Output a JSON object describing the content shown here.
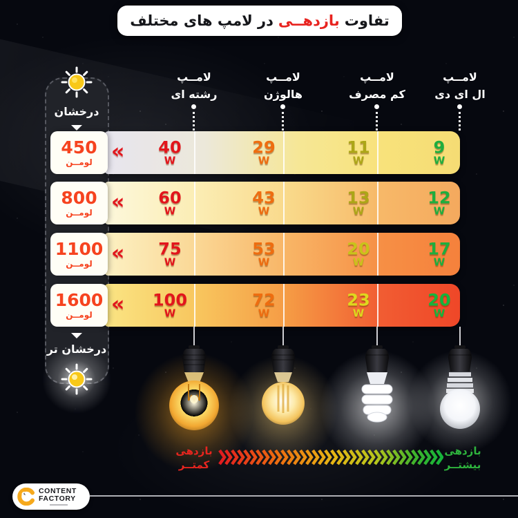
{
  "title": {
    "part1": "تفاوت",
    "highlight": "بازدهــی",
    "part2": "در لامپ های مختلف"
  },
  "sidebar": {
    "top_label": "درخشان",
    "bottom_label": "درخشان تر"
  },
  "columns": [
    {
      "line1": "لامــپ",
      "line2": "رشته ای"
    },
    {
      "line1": "لامــپ",
      "line2": "هالوژن"
    },
    {
      "line1": "لامــپ",
      "line2": "کم مصرف"
    },
    {
      "line1": "لامــپ",
      "line2": "ال ای دی"
    }
  ],
  "rows": [
    {
      "lumen": "450",
      "unit": "لومــن",
      "values": [
        "40",
        "29",
        "11",
        "9"
      ]
    },
    {
      "lumen": "800",
      "unit": "لومــن",
      "values": [
        "60",
        "43",
        "13",
        "12"
      ]
    },
    {
      "lumen": "1100",
      "unit": "لومــن",
      "values": [
        "75",
        "53",
        "20",
        "17"
      ]
    },
    {
      "lumen": "1600",
      "unit": "لومــن",
      "values": [
        "100",
        "72",
        "23",
        "20"
      ]
    }
  ],
  "watt_unit": "W",
  "icons": {
    "row_chevron": "«",
    "sun": "sun-icon",
    "arrow_down": "triangle-down"
  },
  "legend": {
    "low": {
      "line1": "بازدهی",
      "line2": "کمتــر"
    },
    "high": {
      "line1": "بازدهی",
      "line2": "بیشتــر"
    }
  },
  "logo": {
    "line1": "CONTENT",
    "line2": "FACTORY"
  },
  "palette": {
    "background": "#06080f",
    "title_highlight": "#e8231f",
    "value_red": "#e2151c",
    "value_orange": "#ee6d10",
    "value_olive": "#b0a917",
    "value_green": "#1fad3e",
    "lumen_text": "#f6431f",
    "legend_low": "#e8251f",
    "legend_high": "#2eb33d",
    "row1_gradient": [
      "#e7e5ef",
      "#f5dc74"
    ],
    "row2_gradient": [
      "#fdf8dc",
      "#f4a95e"
    ],
    "row3_gradient": [
      "#fcf1c3",
      "#f5813c"
    ],
    "row4_gradient": [
      "#fae584",
      "#ef4728"
    ]
  },
  "chart_data": {
    "type": "table",
    "title": "تفاوت بازدهی در لامپ های مختلف",
    "categories": [
      "لامپ رشته ای",
      "لامپ هالوژن",
      "لامپ کم مصرف",
      "لامپ ال ای دی"
    ],
    "rows": [
      {
        "lumens": 450,
        "watts": [
          40,
          29,
          11,
          9
        ]
      },
      {
        "lumens": 800,
        "watts": [
          60,
          43,
          13,
          12
        ]
      },
      {
        "lumens": 1100,
        "watts": [
          75,
          53,
          20,
          17
        ]
      },
      {
        "lumens": 1600,
        "watts": [
          100,
          72,
          23,
          20
        ]
      }
    ],
    "unit": "W",
    "row_unit": "لومن",
    "brightness_scale": {
      "top": "درخشان",
      "bottom": "درخشان تر"
    },
    "efficiency_axis": {
      "left": "بازدهی کمتر",
      "right": "بازدهی بیشتر"
    }
  }
}
